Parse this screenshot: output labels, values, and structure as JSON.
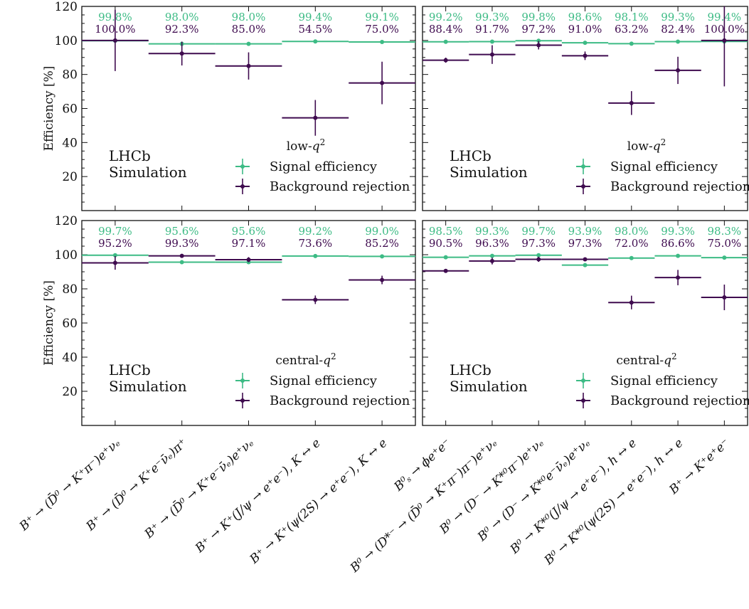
{
  "colors": {
    "signal": "#3dbb85",
    "background": "#3f0b4f",
    "axis": "#111111"
  },
  "chart_data": [
    {
      "type": "scatter",
      "panel": "top-left",
      "region_label": "low-q²",
      "brand": [
        "LHCb",
        "Simulation"
      ],
      "legend": [
        "Signal efficiency",
        "Background rejection"
      ],
      "ylabel": "Efficiency [%]",
      "ylim": [
        0,
        120
      ],
      "yticks": [
        "20",
        "40",
        "60",
        "80",
        "100",
        "120"
      ],
      "categories": [
        "B⁺ → (D̄⁰ → K⁺π⁻)e⁺νₑ",
        "B⁺ → (D̄⁰ → K⁺e⁻ν̄ₑ)π⁺",
        "B⁺ → (D̄⁰ → K⁺e⁻ν̄ₑ)e⁺νₑ",
        "B⁺ → K⁺(J/ψ → e⁺e⁻), K ↔ e",
        "B⁺ → K⁺(ψ(2S) → e⁺e⁻), K ↔ e"
      ],
      "series": [
        {
          "name": "Signal efficiency",
          "values": [
            99.8,
            98.0,
            98.0,
            99.4,
            99.1
          ],
          "errors": [
            0.3,
            0.3,
            0.3,
            0.3,
            0.3
          ],
          "labels": [
            "99.8%",
            "98.0%",
            "98.0%",
            "99.4%",
            "99.1%"
          ]
        },
        {
          "name": "Background rejection",
          "values": [
            100.0,
            92.3,
            85.0,
            54.5,
            75.0
          ],
          "errors": [
            18,
            7,
            8,
            10.5,
            12.5
          ],
          "labels": [
            "100.0%",
            "92.3%",
            "85.0%",
            "54.5%",
            "75.0%"
          ]
        }
      ]
    },
    {
      "type": "scatter",
      "panel": "top-right",
      "region_label": "low-q²",
      "brand": [
        "LHCb",
        "Simulation"
      ],
      "legend": [
        "Signal efficiency",
        "Background rejection"
      ],
      "ylim": [
        0,
        120
      ],
      "categories": [
        "B⁰ₛ → ϕe⁺e⁻",
        "B⁰ → (D*⁻ → (D̄⁰ → K⁺π⁻)π⁻)e⁺νₑ",
        "B⁰ → (D⁻ → K*⁰π⁻)e⁺νₑ",
        "B⁰ → (D⁻ → K*⁰e⁻ν̄ₑ)e⁺νₑ",
        "B⁰ → K*⁰(J/ψ → e⁺e⁻), h ↔ e",
        "B⁰ → K*⁰(ψ(2S) → e⁺e⁻), h ↔ e",
        "B⁺ → K⁺e⁺e⁻"
      ],
      "series": [
        {
          "name": "Signal efficiency",
          "values": [
            99.2,
            99.3,
            99.8,
            98.6,
            98.1,
            99.3,
            99.4
          ],
          "errors": [
            0.3,
            0.3,
            0.3,
            0.3,
            0.3,
            0.3,
            0.3
          ],
          "labels": [
            "99.2%",
            "99.3%",
            "99.8%",
            "98.6%",
            "98.1%",
            "99.3%",
            "99.4%"
          ]
        },
        {
          "name": "Background rejection",
          "values": [
            88.4,
            91.7,
            97.2,
            91.0,
            63.2,
            82.4,
            100.0
          ],
          "errors": [
            1.5,
            5.5,
            2.5,
            2.5,
            7,
            8,
            27
          ],
          "labels": [
            "88.4%",
            "91.7%",
            "97.2%",
            "91.0%",
            "63.2%",
            "82.4%",
            "100.0%"
          ]
        }
      ]
    },
    {
      "type": "scatter",
      "panel": "bottom-left",
      "region_label": "central-q²",
      "brand": [
        "LHCb",
        "Simulation"
      ],
      "legend": [
        "Signal efficiency",
        "Background rejection"
      ],
      "ylabel": "Efficiency [%]",
      "ylim": [
        0,
        120
      ],
      "yticks": [
        "20",
        "40",
        "60",
        "80",
        "100",
        "120"
      ],
      "categories": [
        "B⁺ → (D̄⁰ → K⁺π⁻)e⁺νₑ",
        "B⁺ → (D̄⁰ → K⁺e⁻ν̄ₑ)π⁺",
        "B⁺ → (D̄⁰ → K⁺e⁻ν̄ₑ)e⁺νₑ",
        "B⁺ → K⁺(J/ψ → e⁺e⁻), K ↔ e",
        "B⁺ → K⁺(ψ(2S) → e⁺e⁻), K ↔ e"
      ],
      "series": [
        {
          "name": "Signal efficiency",
          "values": [
            99.7,
            95.6,
            95.6,
            99.2,
            99.0
          ],
          "errors": [
            0.3,
            0.4,
            0.4,
            0.3,
            0.3
          ],
          "labels": [
            "99.7%",
            "95.6%",
            "95.6%",
            "99.2%",
            "99.0%"
          ]
        },
        {
          "name": "Background rejection",
          "values": [
            95.2,
            99.3,
            97.1,
            73.6,
            85.2
          ],
          "errors": [
            4,
            1,
            1.5,
            2.5,
            2.5
          ],
          "labels": [
            "95.2%",
            "99.3%",
            "97.1%",
            "73.6%",
            "85.2%"
          ]
        }
      ]
    },
    {
      "type": "scatter",
      "panel": "bottom-right",
      "region_label": "central-q²",
      "brand": [
        "LHCb",
        "Simulation"
      ],
      "legend": [
        "Signal efficiency",
        "Background rejection"
      ],
      "ylim": [
        0,
        120
      ],
      "categories": [
        "B⁰ₛ → ϕe⁺e⁻",
        "B⁰ → (D*⁻ → (D̄⁰ → K⁺π⁻)π⁻)e⁺νₑ",
        "B⁰ → (D⁻ → K*⁰π⁻)e⁺νₑ",
        "B⁰ → (D⁻ → K*⁰e⁻ν̄ₑ)e⁺νₑ",
        "B⁰ → K*⁰(J/ψ → e⁺e⁻), h ↔ e",
        "B⁰ → K*⁰(ψ(2S) → e⁺e⁻), h ↔ e",
        "B⁺ → K⁺e⁺e⁻"
      ],
      "series": [
        {
          "name": "Signal efficiency",
          "values": [
            98.5,
            99.3,
            99.7,
            93.9,
            98.0,
            99.3,
            98.3
          ],
          "errors": [
            0.3,
            0.3,
            0.3,
            0.4,
            0.3,
            0.3,
            0.3
          ],
          "labels": [
            "98.5%",
            "99.3%",
            "99.7%",
            "93.9%",
            "98.0%",
            "99.3%",
            "98.3%"
          ]
        },
        {
          "name": "Background rejection",
          "values": [
            90.5,
            96.3,
            97.3,
            97.3,
            72.0,
            86.6,
            75.0
          ],
          "errors": [
            1,
            2,
            1.5,
            1,
            4,
            4.5,
            7.5
          ],
          "labels": [
            "90.5%",
            "96.3%",
            "97.3%",
            "97.3%",
            "72.0%",
            "86.6%",
            "75.0%"
          ]
        }
      ]
    }
  ]
}
